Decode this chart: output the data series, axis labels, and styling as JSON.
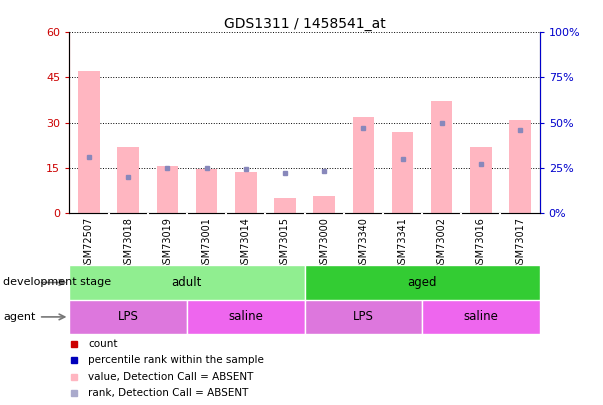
{
  "title": "GDS1311 / 1458541_at",
  "samples": [
    "GSM72507",
    "GSM73018",
    "GSM73019",
    "GSM73001",
    "GSM73014",
    "GSM73015",
    "GSM73000",
    "GSM73340",
    "GSM73341",
    "GSM73002",
    "GSM73016",
    "GSM73017"
  ],
  "pink_bar_values": [
    47,
    22,
    15.5,
    14.5,
    13.5,
    5,
    5.5,
    32,
    27,
    37,
    22,
    31
  ],
  "blue_dot_values": [
    31,
    20,
    25,
    25,
    24,
    22,
    23,
    47,
    30,
    50,
    27,
    46
  ],
  "left_ylim": [
    0,
    60
  ],
  "right_ylim": [
    0,
    100
  ],
  "left_yticks": [
    0,
    15,
    30,
    45,
    60
  ],
  "right_yticks": [
    0,
    25,
    50,
    75,
    100
  ],
  "left_ytick_labels": [
    "0",
    "15",
    "30",
    "45",
    "60"
  ],
  "right_ytick_labels": [
    "0%",
    "25%",
    "50%",
    "75%",
    "100%"
  ],
  "development_stage_groups": [
    {
      "label": "adult",
      "start": 0,
      "end": 6,
      "color": "#90EE90"
    },
    {
      "label": "aged",
      "start": 6,
      "end": 12,
      "color": "#33CC33"
    }
  ],
  "agent_groups": [
    {
      "label": "LPS",
      "start": 0,
      "end": 3,
      "color": "#DD77DD"
    },
    {
      "label": "saline",
      "start": 3,
      "end": 6,
      "color": "#EE66EE"
    },
    {
      "label": "LPS",
      "start": 6,
      "end": 9,
      "color": "#DD77DD"
    },
    {
      "label": "saline",
      "start": 9,
      "end": 12,
      "color": "#EE66EE"
    }
  ],
  "pink_bar_color": "#FFB6C1",
  "blue_dot_color": "#8888BB",
  "legend_items": [
    {
      "color": "#CC0000",
      "label": "count"
    },
    {
      "color": "#0000BB",
      "label": "percentile rank within the sample"
    },
    {
      "color": "#FFB6C1",
      "label": "value, Detection Call = ABSENT"
    },
    {
      "color": "#AAAACC",
      "label": "rank, Detection Call = ABSENT"
    }
  ],
  "bg_color": "#CCCCCC",
  "chart_bg": "#FFFFFF",
  "dev_stage_label": "development stage",
  "agent_label": "agent",
  "left_axis_color": "#CC0000",
  "right_axis_color": "#0000CC"
}
